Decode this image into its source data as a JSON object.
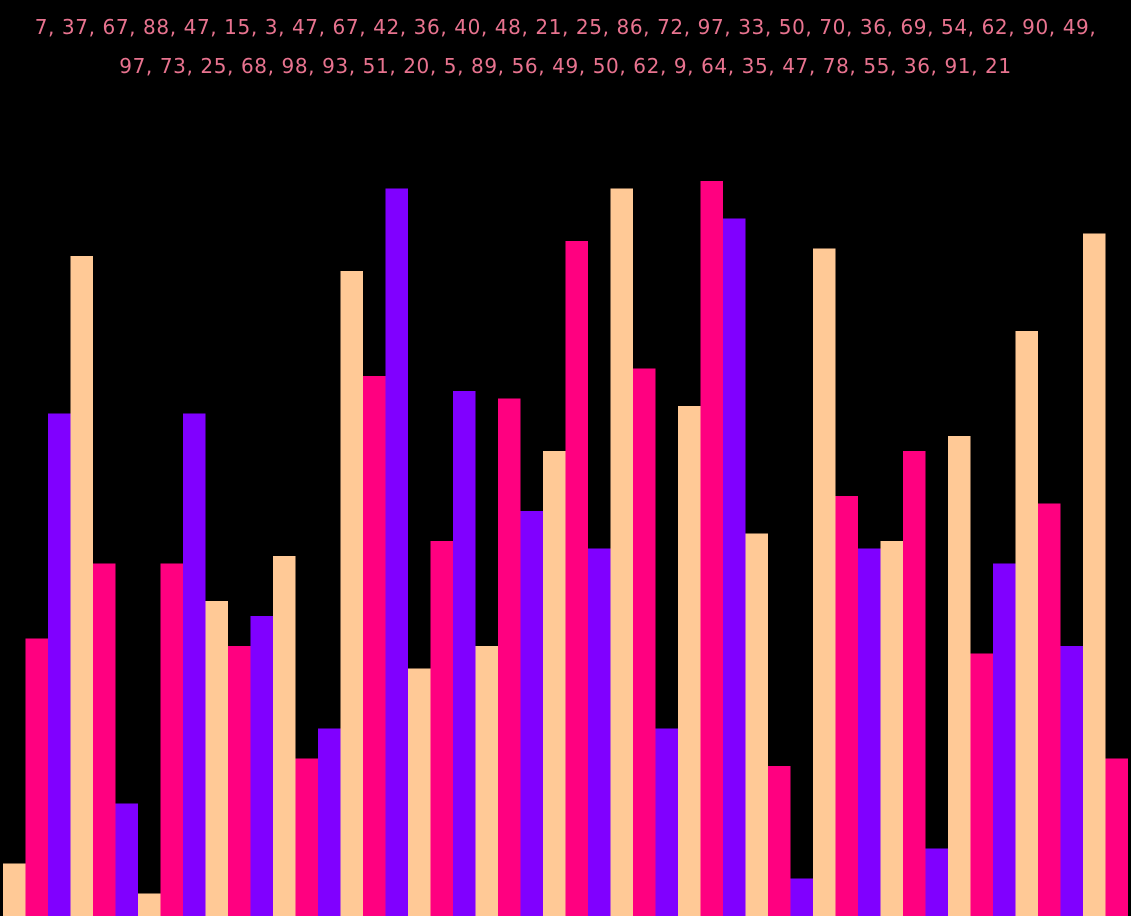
{
  "caption": {
    "text": "7, 37, 67, 88, 47, 15, 3, 47, 67, 42, 36, 40, 48, 21, 25, 86, 72, 97, 33, 50, 70, 36, 69, 54, 62, 90, 49, 97, 73, 25, 68, 98, 93, 51, 20, 5, 89, 56, 49, 50, 62, 9, 64, 35, 47, 78, 55, 36, 91, 21",
    "color": "#e8738f"
  },
  "chart_data": {
    "type": "bar",
    "values": [
      7,
      37,
      67,
      88,
      47,
      15,
      3,
      47,
      67,
      42,
      36,
      40,
      48,
      21,
      25,
      86,
      72,
      97,
      33,
      50,
      70,
      36,
      69,
      54,
      62,
      90,
      49,
      97,
      73,
      25,
      68,
      98,
      93,
      51,
      20,
      5,
      89,
      56,
      49,
      50,
      62,
      9,
      64,
      35,
      47,
      78,
      55,
      36,
      91,
      21
    ],
    "ylim": [
      0,
      100
    ],
    "grid": false,
    "legend": "none",
    "color_cycle": [
      "#ffc996",
      "#ff0080",
      "#8000ff"
    ],
    "background": "#000000"
  }
}
